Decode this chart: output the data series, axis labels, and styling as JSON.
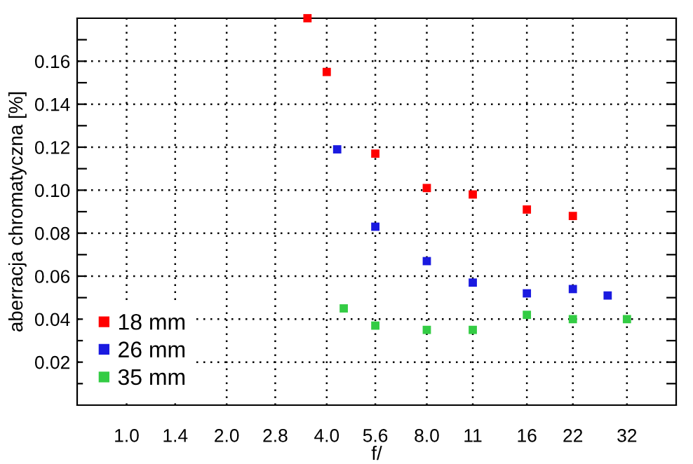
{
  "chart_data": {
    "type": "scatter",
    "xlabel": "f/",
    "ylabel": "aberracja chromatyczna [%]",
    "log": "x",
    "marker": "square",
    "grid": true,
    "legend": "bottom left",
    "xlim": [
      0.71,
      45
    ],
    "ylim": [
      0,
      0.18
    ],
    "xticks": [
      {
        "value": 1,
        "label": "1.0"
      },
      1.4,
      {
        "value": 2,
        "label": "2.0"
      },
      2.8,
      {
        "value": 4,
        "label": "4.0"
      },
      5.6,
      {
        "value": 8,
        "label": "8.0"
      },
      11,
      16,
      22,
      32
    ],
    "yticks": [
      {
        "value": 0.01,
        "label": null
      },
      0.02,
      {
        "value": 0.03,
        "label": null
      },
      0.04,
      {
        "value": 0.05,
        "label": null
      },
      0.06,
      {
        "value": 0.07,
        "label": null
      },
      0.08,
      {
        "value": 0.09,
        "label": null
      },
      {
        "value": 0.1,
        "label": "0.10"
      },
      {
        "value": 0.11,
        "label": null
      },
      0.12,
      {
        "value": 0.13,
        "label": null
      },
      0.14,
      {
        "value": 0.15,
        "label": null
      },
      0.16,
      {
        "value": 0.17,
        "label": null
      }
    ],
    "series": [
      {
        "name": "18 mm",
        "color": "#ff0000",
        "x": [
          3.5,
          4,
          5.6,
          8,
          11,
          16,
          22
        ],
        "values": [
          0.18,
          0.155,
          0.117,
          0.101,
          0.098,
          0.091,
          0.088
        ]
      },
      {
        "name": "26 mm",
        "color": "#1a1ae0",
        "x": [
          4.3,
          5.6,
          8,
          11,
          16,
          22,
          28
        ],
        "values": [
          0.119,
          0.083,
          0.067,
          0.057,
          0.052,
          0.054,
          0.051
        ]
      },
      {
        "name": "35 mm",
        "color": "#33cc44",
        "x": [
          4.5,
          5.6,
          8,
          11,
          16,
          22,
          32
        ],
        "values": [
          0.045,
          0.037,
          0.035,
          0.035,
          0.042,
          0.04,
          0.04
        ]
      }
    ]
  }
}
